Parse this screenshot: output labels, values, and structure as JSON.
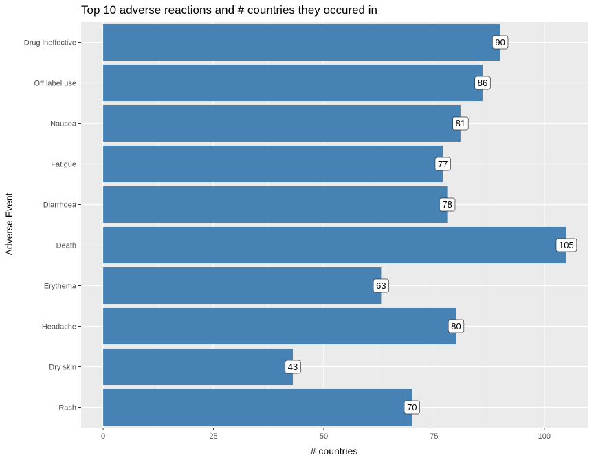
{
  "chart_data": {
    "type": "bar",
    "orientation": "horizontal",
    "title": "Top 10 adverse reactions and # countries they occured in",
    "xlabel": "# countries",
    "ylabel": "Adverse Event",
    "categories": [
      "Drug ineffective",
      "Off label use",
      "Nausea",
      "Fatigue",
      "Diarrhoea",
      "Death",
      "Erythema",
      "Headache",
      "Dry skin",
      "Rash"
    ],
    "values": [
      90,
      86,
      81,
      77,
      78,
      105,
      63,
      80,
      43,
      70
    ],
    "xlim": [
      -5,
      110
    ],
    "xticks": [
      0,
      25,
      50,
      75,
      100
    ],
    "grid": true,
    "bar_color": "#4682b4",
    "panel_background": "#ebebeb",
    "grid_color": "#ffffff"
  }
}
